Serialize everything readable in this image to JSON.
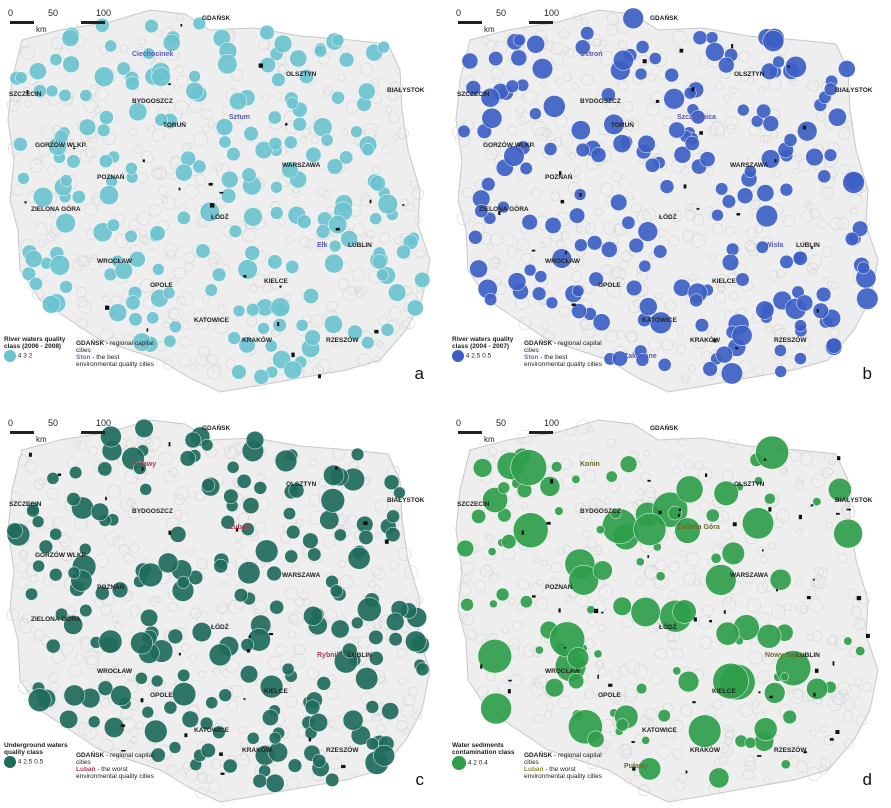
{
  "scale": {
    "ticks": [
      "0",
      "50",
      "100"
    ],
    "unit": "km"
  },
  "panels": {
    "a": {
      "letter": "a",
      "color": "#6cc3cf",
      "legend_title": "River waters quality class (2006 - 2008)",
      "legend_values": [
        "4",
        "3",
        "2"
      ],
      "capital_label": "GDAŃSK",
      "capital_desc": "- regional capital cities",
      "quality_label": "Ston",
      "quality_desc": "- the best environmental quality cities",
      "cities": [
        "GDAŃSK",
        "OLSZTYN",
        "BIAŁYSTOK",
        "SZCZECIN",
        "BYDGOSZCZ",
        "TORUŃ",
        "GORZÓW WLKP.",
        "POZNAŃ",
        "WARSZAWA",
        "ŁÓDŹ",
        "ZIELONA GÓRA",
        "WROCŁAW",
        "OPOLE",
        "KIELCE",
        "LUBLIN",
        "KATOWICE",
        "KRAKÓW",
        "RZESZÓW"
      ],
      "highlighted_cities": [
        "Ciechocinek",
        "Sztum",
        "Ełk"
      ]
    },
    "b": {
      "letter": "b",
      "color": "#3d5fc4",
      "legend_title": "River waters quality class (2004 - 2007)",
      "legend_values": [
        "4",
        "2.5",
        "0.5"
      ],
      "capital_label": "GDAŃSK",
      "capital_desc": "- regional capital cities",
      "quality_label": "Ston",
      "quality_desc": "- the best environmental quality cities",
      "cities": [
        "GDAŃSK",
        "OLSZTYN",
        "BIAŁYSTOK",
        "SZCZECIN",
        "BYDGOSZCZ",
        "TORUŃ",
        "GORZÓW WLKP.",
        "POZNAŃ",
        "WARSZAWA",
        "ŁÓDŹ",
        "ZIELONA GÓRA",
        "WROCŁAW",
        "OPOLE",
        "KIELCE",
        "LUBLIN",
        "KATOWICE",
        "KRAKÓW",
        "RZESZÓW"
      ],
      "highlighted_cities": [
        "Ustroń",
        "Szczawnica",
        "Wisła",
        "Zakopane"
      ]
    },
    "c": {
      "letter": "c",
      "color": "#1f6b5c",
      "legend_title": "Underground waters quality class",
      "legend_values": [
        "4",
        "2.5",
        "0.5"
      ],
      "capital_label": "GDAŃSK",
      "capital_desc": "- regional capital cities",
      "quality_label": "Lubań",
      "quality_desc": "- the worst environmental quality cities",
      "cities": [
        "GDAŃSK",
        "OLSZTYN",
        "BIAŁYSTOK",
        "SZCZECIN",
        "BYDGOSZCZ",
        "GORZÓW WLKP.",
        "POZNAŃ",
        "WARSZAWA",
        "ŁÓDŹ",
        "ZIELONA GÓRA",
        "WROCŁAW",
        "OPOLE",
        "KIELCE",
        "LUBLIN",
        "KATOWICE",
        "KRAKÓW",
        "RZESZÓW"
      ],
      "highlighted_cities": [
        "Puławy",
        "Lubań",
        "Rybnik"
      ]
    },
    "d": {
      "letter": "d",
      "color": "#2f9e4b",
      "legend_title": "Water sediments contamination class",
      "legend_values": [
        "4",
        "2",
        "0.4"
      ],
      "capital_label": "GDAŃSK",
      "capital_desc": "- regional capital cities",
      "quality_label": "Lubań",
      "quality_desc": "- the worst environmental quality cities",
      "cities": [
        "GDAŃSK",
        "OLSZTYN",
        "BIAŁYSTOK",
        "SZCZECIN",
        "BYDGOSZCZ",
        "POZNAŃ",
        "WARSZAWA",
        "ŁÓDŹ",
        "WROCŁAW",
        "OPOLE",
        "KIELCE",
        "LUBLIN",
        "KATOWICE",
        "KRAKÓW",
        "RZESZÓW"
      ],
      "highlighted_cities": [
        "Konin",
        "Zielona Góra",
        "Nowy Sącz",
        "Puławy"
      ]
    }
  }
}
